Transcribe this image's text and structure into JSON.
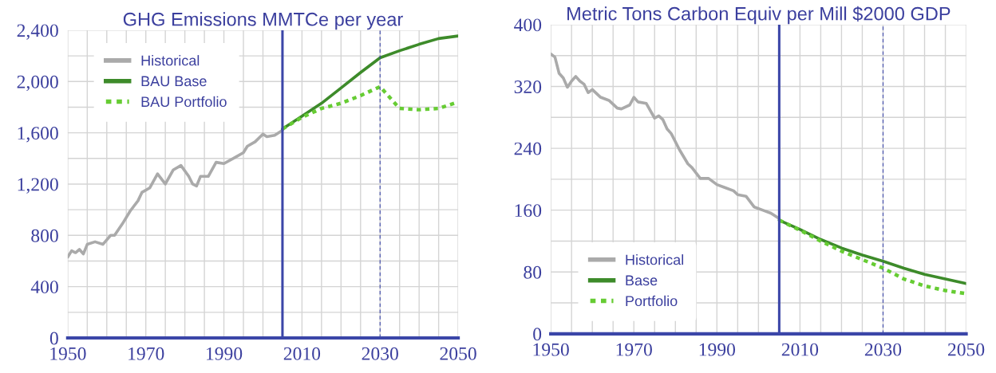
{
  "chart_data": [
    {
      "type": "line",
      "title": "GHG Emissions MMTCe per year",
      "grid": true,
      "legend": "top left",
      "xlim": [
        1950,
        2050
      ],
      "ylim": [
        0,
        2400
      ],
      "xticks": [
        1950,
        {
          "value": 1955,
          "label": null
        },
        {
          "value": 1960,
          "label": null
        },
        {
          "value": 1965,
          "label": null
        },
        1970,
        {
          "value": 1975,
          "label": null
        },
        {
          "value": 1980,
          "label": null
        },
        {
          "value": 1985,
          "label": null
        },
        1990,
        {
          "value": 1995,
          "label": null
        },
        {
          "value": 2000,
          "label": null
        },
        {
          "value": 2005,
          "label": null
        },
        2010,
        {
          "value": 2015,
          "label": null
        },
        {
          "value": 2020,
          "label": null
        },
        {
          "value": 2025,
          "label": null
        },
        2030,
        {
          "value": 2035,
          "label": null
        },
        {
          "value": 2040,
          "label": null
        },
        {
          "value": 2045,
          "label": null
        },
        2050
      ],
      "yticks": [
        0,
        {
          "value": 200,
          "label": null
        },
        400,
        {
          "value": 600,
          "label": null
        },
        800,
        {
          "value": 1000,
          "label": null
        },
        {
          "value": 1200,
          "label": "1,200"
        },
        {
          "value": 1400,
          "label": null
        },
        {
          "value": 1600,
          "label": "1,600"
        },
        {
          "value": 1800,
          "label": null
        },
        {
          "value": 2000,
          "label": "2,000"
        },
        {
          "value": 2200,
          "label": null
        },
        {
          "value": 2400,
          "label": "2,400"
        }
      ],
      "ref_lines": [
        {
          "axis": "x",
          "value": 2005,
          "color": "#3b46a8",
          "line_style": "solid"
        },
        {
          "axis": "x",
          "value": 2030,
          "color": "#3b46a8",
          "line_style": "dashed"
        }
      ],
      "series": [
        {
          "name": "Historical",
          "color": "#aaaaaa",
          "line_style": "solid",
          "x": [
            1950,
            1951,
            1952,
            1953,
            1954,
            1955,
            1957,
            1959,
            1961,
            1962,
            1964,
            1966,
            1968,
            1969,
            1971,
            1973,
            1975,
            1977,
            1979,
            1981,
            1982,
            1983,
            1984,
            1986,
            1988,
            1990,
            1993,
            1995,
            1996,
            1998,
            2000,
            2001,
            2003,
            2005
          ],
          "values": [
            630,
            680,
            665,
            690,
            655,
            730,
            750,
            730,
            800,
            800,
            890,
            990,
            1070,
            1135,
            1170,
            1280,
            1200,
            1310,
            1345,
            1260,
            1200,
            1185,
            1260,
            1260,
            1370,
            1360,
            1410,
            1445,
            1495,
            1530,
            1590,
            1570,
            1580,
            1620
          ]
        },
        {
          "name": "BAU Base",
          "color": "#3d8b2a",
          "line_style": "solid",
          "x": [
            2005,
            2010,
            2015,
            2020,
            2025,
            2030,
            2035,
            2040,
            2045,
            2050
          ],
          "values": [
            1630,
            1730,
            1830,
            1950,
            2070,
            2185,
            2240,
            2290,
            2335,
            2355
          ]
        },
        {
          "name": "BAU Portfolio",
          "color": "#66cc33",
          "line_style": "dotted",
          "x": [
            2005,
            2010,
            2015,
            2020,
            2025,
            2030,
            2035,
            2040,
            2045,
            2050
          ],
          "values": [
            1630,
            1720,
            1790,
            1830,
            1890,
            1960,
            1790,
            1780,
            1790,
            1840
          ]
        }
      ]
    },
    {
      "type": "line",
      "title": "Metric Tons Carbon Equiv per Mill $2000 GDP",
      "grid": true,
      "legend": "bottom left",
      "xlim": [
        1950,
        2050
      ],
      "ylim": [
        0,
        400
      ],
      "xticks": [
        1950,
        {
          "value": 1955,
          "label": null
        },
        {
          "value": 1960,
          "label": null
        },
        {
          "value": 1965,
          "label": null
        },
        1970,
        {
          "value": 1975,
          "label": null
        },
        {
          "value": 1980,
          "label": null
        },
        {
          "value": 1985,
          "label": null
        },
        1990,
        {
          "value": 1995,
          "label": null
        },
        {
          "value": 2000,
          "label": null
        },
        {
          "value": 2005,
          "label": null
        },
        2010,
        {
          "value": 2015,
          "label": null
        },
        {
          "value": 2020,
          "label": null
        },
        {
          "value": 2025,
          "label": null
        },
        2030,
        {
          "value": 2035,
          "label": null
        },
        {
          "value": 2040,
          "label": null
        },
        {
          "value": 2045,
          "label": null
        },
        2050
      ],
      "yticks": [
        0,
        {
          "value": 40,
          "label": null
        },
        80,
        {
          "value": 120,
          "label": null
        },
        160,
        {
          "value": 200,
          "label": null
        },
        240,
        {
          "value": 280,
          "label": null
        },
        320,
        {
          "value": 360,
          "label": null
        },
        400
      ],
      "ref_lines": [
        {
          "axis": "x",
          "value": 2005,
          "color": "#3b46a8",
          "line_style": "solid"
        },
        {
          "axis": "x",
          "value": 2030,
          "color": "#3b46a8",
          "line_style": "dashed"
        }
      ],
      "series": [
        {
          "name": "Historical",
          "color": "#aaaaaa",
          "line_style": "solid",
          "x": [
            1950,
            1951,
            1952,
            1953,
            1954,
            1955,
            1956,
            1957,
            1958,
            1959,
            1960,
            1962,
            1964,
            1966,
            1967,
            1969,
            1970,
            1971,
            1973,
            1975,
            1976,
            1977,
            1978,
            1979,
            1981,
            1983,
            1984,
            1986,
            1988,
            1990,
            1992,
            1994,
            1995,
            1997,
            1999,
            2001,
            2003,
            2005
          ],
          "values": [
            362,
            358,
            337,
            331,
            319,
            327,
            333,
            327,
            323,
            312,
            316,
            306,
            302,
            292,
            291,
            296,
            306,
            300,
            298,
            279,
            282,
            277,
            265,
            259,
            238,
            220,
            215,
            201,
            201,
            193,
            189,
            185,
            180,
            178,
            164,
            160,
            156,
            149
          ]
        },
        {
          "name": "Base",
          "color": "#3d8b2a",
          "line_style": "solid",
          "x": [
            2005,
            2010,
            2015,
            2020,
            2025,
            2030,
            2035,
            2040,
            2045,
            2050
          ],
          "values": [
            147,
            135,
            122,
            111,
            102,
            94,
            85,
            77,
            71,
            65
          ]
        },
        {
          "name": "Portfolio",
          "color": "#66cc33",
          "line_style": "dotted",
          "x": [
            2005,
            2010,
            2015,
            2020,
            2025,
            2030,
            2035,
            2040,
            2045,
            2050
          ],
          "values": [
            147,
            134,
            120,
            107,
            96,
            85,
            71,
            62,
            56,
            52
          ]
        }
      ]
    }
  ]
}
